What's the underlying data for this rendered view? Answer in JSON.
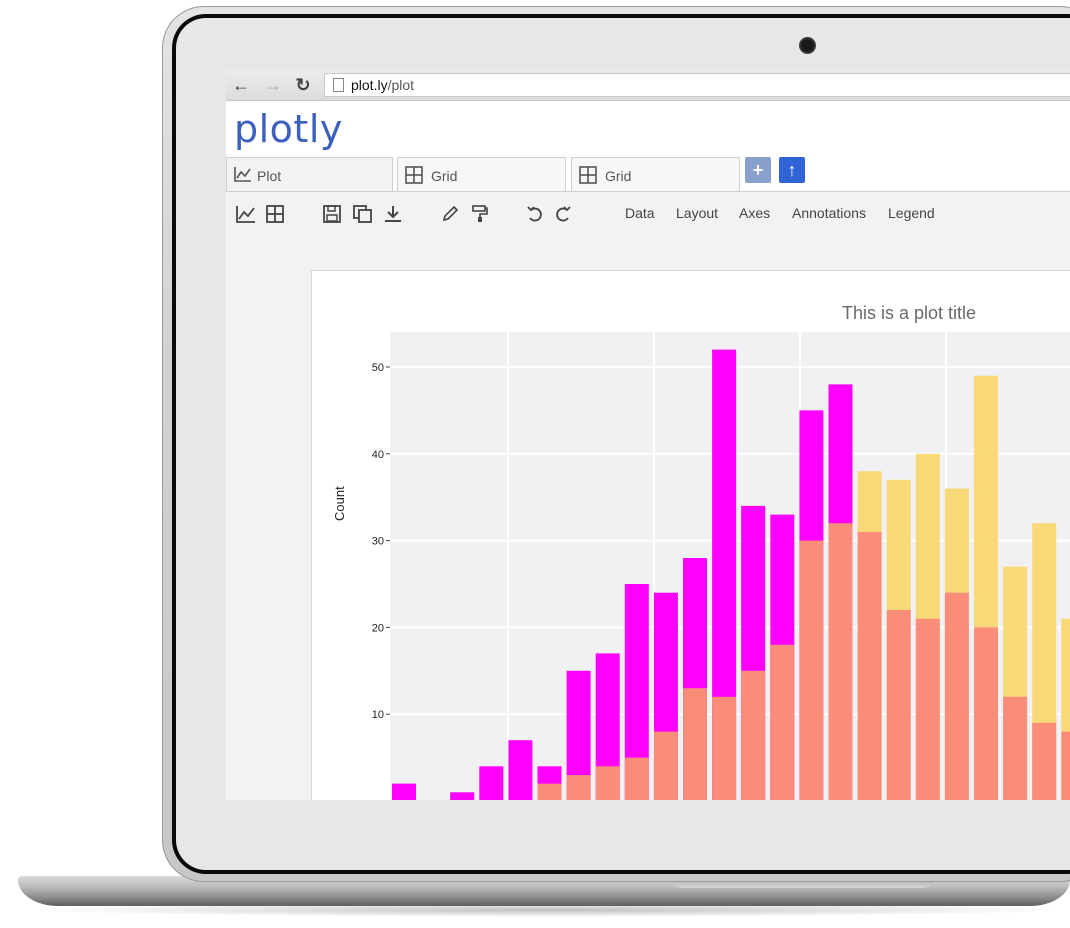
{
  "browser": {
    "url_host": "plot.ly",
    "url_path": "/plot"
  },
  "app": {
    "logo": "plotly"
  },
  "tabs": [
    {
      "label": "Plot",
      "icon": "line-chart-icon",
      "active": true
    },
    {
      "label": "Grid",
      "icon": "grid-icon",
      "active": false
    },
    {
      "label": "Grid",
      "icon": "grid-icon",
      "active": false
    }
  ],
  "tab_buttons": {
    "add_color": "#8aa0cc",
    "upload_color": "#2f63d6"
  },
  "toolbar": {
    "menu": [
      "Data",
      "Layout",
      "Axes",
      "Annotations",
      "Legend"
    ]
  },
  "colors": {
    "magenta": "#ff00ff",
    "salmon": "#fa8c7a",
    "yellow": "#f9d877",
    "plot_bg": "#f1f1f3",
    "brand_blue": "#3d5fc0"
  },
  "chart_data": {
    "type": "bar",
    "title": "This is a plot title",
    "ylabel": "Count",
    "xlabel": "",
    "barmode": "overlay",
    "ylim": [
      0,
      55
    ],
    "yticks": [
      10,
      20,
      30,
      40,
      50
    ],
    "grid": true,
    "series": [
      {
        "color": "#ff00ff",
        "values": [
          2,
          0,
          1,
          4,
          7,
          4,
          15,
          17,
          25,
          24,
          28,
          52,
          34,
          33,
          45,
          48
        ]
      },
      {
        "color": "#fa8c7a",
        "values": [
          0,
          0,
          0,
          0,
          0,
          2,
          3,
          4,
          5,
          8,
          13,
          12,
          15,
          18,
          30,
          32,
          31,
          22,
          21,
          24,
          20,
          12,
          9,
          8
        ]
      },
      {
        "color": "#f9d877",
        "values": [
          0,
          0,
          0,
          0,
          0,
          0,
          0,
          0,
          0,
          0,
          0,
          0,
          0,
          0,
          0,
          0,
          38,
          37,
          40,
          36,
          49,
          27,
          32,
          21
        ]
      }
    ]
  }
}
